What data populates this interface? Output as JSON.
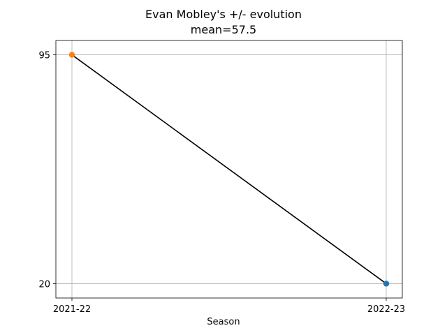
{
  "chart_data": {
    "type": "line",
    "title": "Evan Mobley's +/- evolution",
    "subtitle": "mean=57.5",
    "xlabel": "Season",
    "ylabel": "",
    "x": [
      "2021-22",
      "2022-23"
    ],
    "y": [
      95,
      20
    ],
    "yticks": [
      20,
      95
    ],
    "ylim": [
      15.3,
      99.7
    ],
    "grid": true,
    "line_color": "#000000",
    "point_colors": [
      "#ff7f0e",
      "#1f77b4"
    ]
  }
}
